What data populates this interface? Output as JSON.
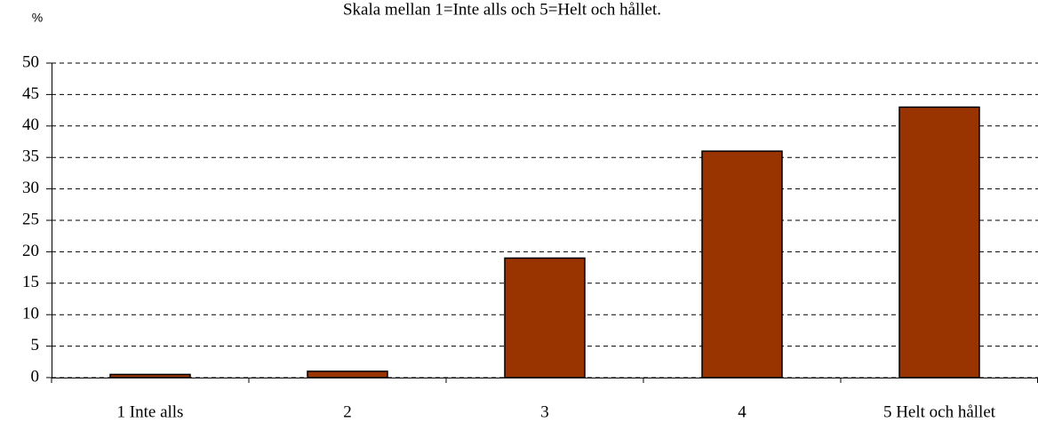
{
  "chart_data": {
    "type": "bar",
    "title": "Skala mellan 1=Inte alls och 5=Helt och hållet.",
    "y_label": "%",
    "categories": [
      "1 Inte alls",
      "2",
      "3",
      "4",
      "5 Helt och hållet"
    ],
    "values": [
      0.5,
      1,
      19,
      36,
      43
    ],
    "color": "#993300",
    "ylim": [
      0,
      50
    ],
    "yticks": [
      0,
      5,
      10,
      15,
      20,
      25,
      30,
      35,
      40,
      45,
      50
    ],
    "grid": true
  }
}
